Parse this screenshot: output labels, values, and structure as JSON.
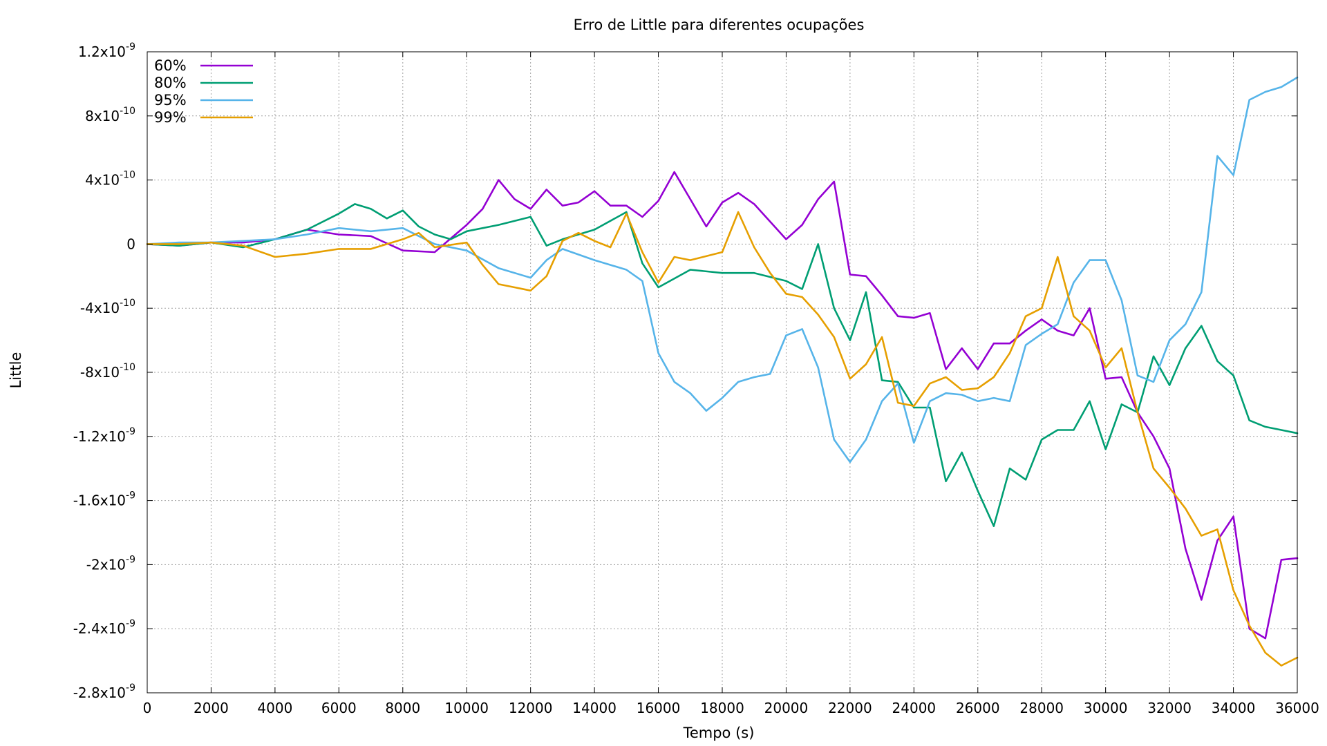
{
  "chart_data": {
    "type": "line",
    "title": "Erro de Little para diferentes ocupações",
    "xlabel": "Tempo (s)",
    "ylabel": "Little",
    "xlim": [
      0,
      36000
    ],
    "ylim": [
      -2.8e-09,
      1.2e-09
    ],
    "grid": true,
    "legend_position": "top-left",
    "x_ticks": [
      {
        "value": 0,
        "label": "0"
      },
      {
        "value": 2000,
        "label": "2000"
      },
      {
        "value": 4000,
        "label": "4000"
      },
      {
        "value": 6000,
        "label": "6000"
      },
      {
        "value": 8000,
        "label": "8000"
      },
      {
        "value": 10000,
        "label": "10000"
      },
      {
        "value": 12000,
        "label": "12000"
      },
      {
        "value": 14000,
        "label": "14000"
      },
      {
        "value": 16000,
        "label": "16000"
      },
      {
        "value": 18000,
        "label": "18000"
      },
      {
        "value": 20000,
        "label": "20000"
      },
      {
        "value": 22000,
        "label": "22000"
      },
      {
        "value": 24000,
        "label": "24000"
      },
      {
        "value": 26000,
        "label": "26000"
      },
      {
        "value": 28000,
        "label": "28000"
      },
      {
        "value": 30000,
        "label": "30000"
      },
      {
        "value": 32000,
        "label": "32000"
      },
      {
        "value": 34000,
        "label": "34000"
      },
      {
        "value": 36000,
        "label": "36000"
      }
    ],
    "y_ticks": [
      {
        "value": 1.2e-09,
        "mant": "1.2x10",
        "exp": "-9"
      },
      {
        "value": 8e-10,
        "mant": "8x10",
        "exp": "-10"
      },
      {
        "value": 4e-10,
        "mant": "4x10",
        "exp": "-10"
      },
      {
        "value": 0,
        "mant": "0",
        "exp": ""
      },
      {
        "value": -4e-10,
        "mant": "-4x10",
        "exp": "-10"
      },
      {
        "value": -8e-10,
        "mant": "-8x10",
        "exp": "-10"
      },
      {
        "value": -1.2e-09,
        "mant": "-1.2x10",
        "exp": "-9"
      },
      {
        "value": -1.6e-09,
        "mant": "-1.6x10",
        "exp": "-9"
      },
      {
        "value": -2e-09,
        "mant": "-2x10",
        "exp": "-9"
      },
      {
        "value": -2.4e-09,
        "mant": "-2.4x10",
        "exp": "-9"
      },
      {
        "value": -2.8e-09,
        "mant": "-2.8x10",
        "exp": "-9"
      }
    ],
    "series": [
      {
        "name": "60%",
        "color": "#9400d3",
        "x": [
          0,
          1000,
          2000,
          3000,
          4000,
          5000,
          6000,
          7000,
          8000,
          9000,
          10000,
          10500,
          11000,
          11500,
          12000,
          12500,
          13000,
          13500,
          14000,
          14500,
          15000,
          15500,
          16000,
          16500,
          17000,
          17500,
          18000,
          18500,
          19000,
          19500,
          20000,
          20500,
          21000,
          21500,
          22000,
          22500,
          23000,
          23500,
          24000,
          24500,
          25000,
          25500,
          26000,
          26500,
          27000,
          27500,
          28000,
          28500,
          29000,
          29500,
          30000,
          30500,
          31000,
          31500,
          32000,
          32500,
          33000,
          33500,
          34000,
          34500,
          35000,
          35500,
          36000
        ],
        "y": [
          0,
          -1e-11,
          1e-11,
          1e-11,
          3e-11,
          9e-11,
          6e-11,
          5e-11,
          -4e-11,
          -5e-11,
          1.2e-10,
          2.2e-10,
          4e-10,
          2.8e-10,
          2.2e-10,
          3.4e-10,
          2.4e-10,
          2.6e-10,
          3.3e-10,
          2.4e-10,
          2.4e-10,
          1.7e-10,
          2.7e-10,
          4.5e-10,
          2.8e-10,
          1.1e-10,
          2.6e-10,
          3.2e-10,
          2.5e-10,
          1.4e-10,
          3e-11,
          1.2e-10,
          2.8e-10,
          3.9e-10,
          -1.9e-10,
          -2e-10,
          -3.2e-10,
          -4.5e-10,
          -4.6e-10,
          -4.3e-10,
          -7.8e-10,
          -6.5e-10,
          -7.8e-10,
          -6.2e-10,
          -6.2e-10,
          -5.4e-10,
          -4.7e-10,
          -5.4e-10,
          -5.7e-10,
          -4e-10,
          -8.4e-10,
          -8.3e-10,
          -1.05e-09,
          -1.2e-09,
          -1.4e-09,
          -1.9e-09,
          -2.22e-09,
          -1.85e-09,
          -1.7e-09,
          -2.4e-09,
          -2.46e-09,
          -1.97e-09,
          -1.96e-09
        ]
      },
      {
        "name": "80%",
        "color": "#009e73",
        "x": [
          0,
          1000,
          2000,
          3000,
          4000,
          5000,
          6000,
          6500,
          7000,
          7500,
          8000,
          8500,
          9000,
          9500,
          10000,
          11000,
          12000,
          12500,
          13000,
          14000,
          15000,
          15500,
          16000,
          17000,
          18000,
          19000,
          20000,
          20500,
          21000,
          21500,
          22000,
          22500,
          23000,
          23500,
          24000,
          24500,
          25000,
          25500,
          26000,
          26500,
          27000,
          27500,
          28000,
          28500,
          29000,
          29500,
          30000,
          30500,
          31000,
          31500,
          32000,
          32500,
          33000,
          33500,
          34000,
          34500,
          35000,
          35500,
          36000
        ],
        "y": [
          0,
          -1e-11,
          1e-11,
          -2e-11,
          3e-11,
          9e-11,
          1.9e-10,
          2.5e-10,
          2.2e-10,
          1.6e-10,
          2.1e-10,
          1.1e-10,
          6e-11,
          3e-11,
          8e-11,
          1.2e-10,
          1.7e-10,
          -1e-11,
          3e-11,
          9e-11,
          2e-10,
          -1.2e-10,
          -2.7e-10,
          -1.6e-10,
          -1.8e-10,
          -1.8e-10,
          -2.3e-10,
          -2.8e-10,
          0,
          -4e-10,
          -6e-10,
          -3e-10,
          -8.5e-10,
          -8.6e-10,
          -1.02e-09,
          -1.02e-09,
          -1.48e-09,
          -1.3e-09,
          -1.54e-09,
          -1.76e-09,
          -1.4e-09,
          -1.47e-09,
          -1.22e-09,
          -1.16e-09,
          -1.16e-09,
          -9.8e-10,
          -1.28e-09,
          -1e-09,
          -1.05e-09,
          -7e-10,
          -8.8e-10,
          -6.5e-10,
          -5.1e-10,
          -7.3e-10,
          -8.2e-10,
          -1.1e-09,
          -1.14e-09,
          -1.16e-09,
          -1.18e-09
        ]
      },
      {
        "name": "95%",
        "color": "#56b4e9",
        "x": [
          0,
          1000,
          2000,
          3000,
          4000,
          5000,
          6000,
          7000,
          8000,
          9000,
          10000,
          11000,
          12000,
          12500,
          13000,
          14000,
          15000,
          15500,
          16000,
          16500,
          17000,
          17500,
          18000,
          18500,
          19000,
          19500,
          20000,
          20500,
          21000,
          21500,
          22000,
          22500,
          23000,
          23500,
          24000,
          24500,
          25000,
          25500,
          26000,
          26500,
          27000,
          27500,
          28000,
          28500,
          29000,
          29500,
          30000,
          30500,
          31000,
          31500,
          32000,
          32500,
          33000,
          33500,
          34000,
          34500,
          35000,
          35500,
          36000
        ],
        "y": [
          0,
          1e-11,
          1e-11,
          2e-11,
          3e-11,
          6e-11,
          1e-10,
          8e-11,
          1e-10,
          0,
          -4e-11,
          -1.5e-10,
          -2.1e-10,
          -1e-10,
          -3e-11,
          -1e-10,
          -1.6e-10,
          -2.3e-10,
          -6.8e-10,
          -8.6e-10,
          -9.3e-10,
          -1.04e-09,
          -9.6e-10,
          -8.6e-10,
          -8.3e-10,
          -8.1e-10,
          -5.7e-10,
          -5.3e-10,
          -7.7e-10,
          -1.22e-09,
          -1.36e-09,
          -1.22e-09,
          -9.8e-10,
          -8.7e-10,
          -1.24e-09,
          -9.8e-10,
          -9.3e-10,
          -9.4e-10,
          -9.8e-10,
          -9.6e-10,
          -9.8e-10,
          -6.3e-10,
          -5.6e-10,
          -5e-10,
          -2.4e-10,
          -1e-10,
          -1e-10,
          -3.5e-10,
          -8.2e-10,
          -8.6e-10,
          -6e-10,
          -5e-10,
          -3e-10,
          5.5e-10,
          4.3e-10,
          9e-10,
          9.5e-10,
          9.8e-10,
          1.04e-09
        ]
      },
      {
        "name": "99%",
        "color": "#e69f00",
        "x": [
          0,
          1000,
          2000,
          3000,
          4000,
          5000,
          6000,
          7000,
          8000,
          8500,
          9000,
          10000,
          10500,
          11000,
          11500,
          12000,
          12500,
          13000,
          13500,
          14000,
          14500,
          15000,
          15500,
          16000,
          16500,
          17000,
          18000,
          18500,
          19000,
          19500,
          20000,
          20500,
          21000,
          21500,
          22000,
          22500,
          23000,
          23500,
          24000,
          24500,
          25000,
          25500,
          26000,
          26500,
          27000,
          27500,
          28000,
          28500,
          29000,
          29500,
          30000,
          30500,
          31000,
          31500,
          32000,
          32500,
          33000,
          33500,
          34000,
          34500,
          35000,
          35500,
          36000
        ],
        "y": [
          0,
          0,
          1e-11,
          -1e-11,
          -8e-11,
          -6e-11,
          -3e-11,
          -3e-11,
          3e-11,
          7e-11,
          -2e-11,
          1e-11,
          -1.3e-10,
          -2.5e-10,
          -2.7e-10,
          -2.9e-10,
          -2e-10,
          2e-11,
          7e-11,
          2e-11,
          -2e-11,
          1.9e-10,
          -5e-11,
          -2.4e-10,
          -8e-11,
          -1e-10,
          -5e-11,
          2e-10,
          -2e-11,
          -1.8e-10,
          -3.1e-10,
          -3.3e-10,
          -4.4e-10,
          -5.8e-10,
          -8.4e-10,
          -7.5e-10,
          -5.8e-10,
          -9.9e-10,
          -1.01e-09,
          -8.7e-10,
          -8.3e-10,
          -9.1e-10,
          -9e-10,
          -8.3e-10,
          -6.8e-10,
          -4.5e-10,
          -4e-10,
          -8e-11,
          -4.5e-10,
          -5.4e-10,
          -7.7e-10,
          -6.5e-10,
          -1.05e-09,
          -1.4e-09,
          -1.52e-09,
          -1.65e-09,
          -1.82e-09,
          -1.78e-09,
          -2.16e-09,
          -2.38e-09,
          -2.55e-09,
          -2.63e-09,
          -2.58e-09
        ]
      }
    ]
  }
}
